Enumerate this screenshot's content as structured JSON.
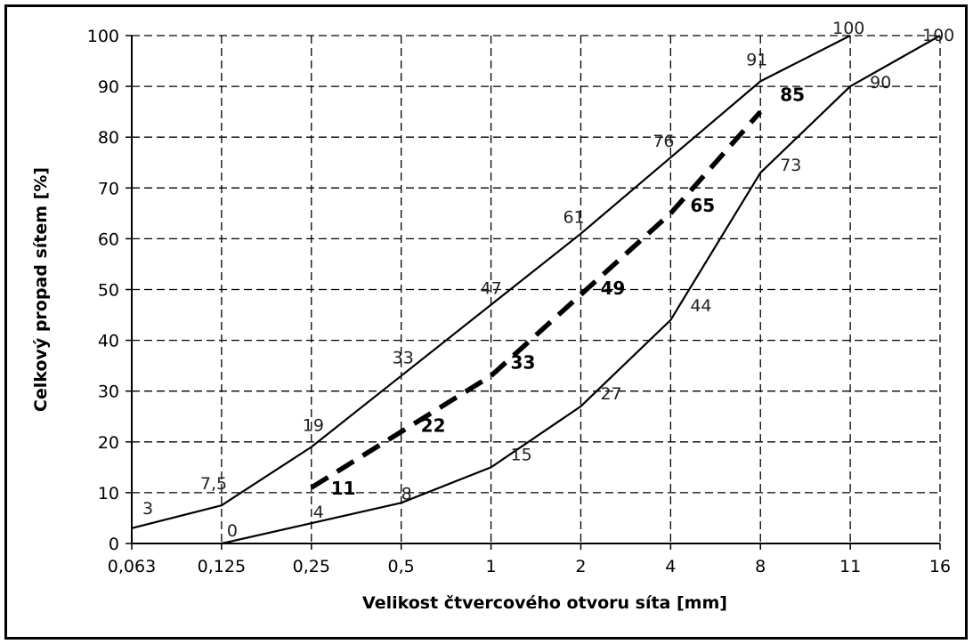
{
  "chart_data": {
    "type": "line",
    "title": "",
    "xlabel": "Velikost čtvercového otvoru síta [mm]",
    "ylabel": "Celkový propad sítem [%]",
    "ylim": [
      0,
      100
    ],
    "y_ticks": [
      "0",
      "10",
      "20",
      "30",
      "40",
      "50",
      "60",
      "70",
      "80",
      "90",
      "100"
    ],
    "categories": [
      "0,063",
      "0,125",
      "0,25",
      "0,5",
      "1",
      "2",
      "4",
      "8",
      "11",
      "16"
    ],
    "grid": true,
    "series": [
      {
        "name": "",
        "style": "solid",
        "points": [
          [
            0,
            3
          ],
          [
            1,
            7.5
          ],
          [
            2,
            19
          ],
          [
            3,
            33
          ],
          [
            4,
            47
          ],
          [
            5,
            61
          ],
          [
            6,
            76
          ],
          [
            7,
            91
          ],
          [
            8,
            100
          ]
        ],
        "labels": [
          "3",
          "7,5",
          "19",
          "33",
          "47",
          "61",
          "76",
          "91",
          "100"
        ]
      },
      {
        "name": "",
        "style": "solid",
        "points": [
          [
            1,
            0
          ],
          [
            2,
            4
          ],
          [
            3,
            8
          ],
          [
            4,
            15
          ],
          [
            5,
            27
          ],
          [
            6,
            44
          ],
          [
            7,
            73
          ],
          [
            8,
            90
          ],
          [
            9,
            100
          ]
        ],
        "labels": [
          "0",
          "4",
          "8",
          "15",
          "27",
          "44",
          "73",
          "90",
          "100"
        ]
      },
      {
        "name": "",
        "style": "dashed",
        "points": [
          [
            2,
            11
          ],
          [
            3,
            22
          ],
          [
            4,
            33
          ],
          [
            5,
            49
          ],
          [
            6,
            65
          ],
          [
            7,
            85
          ]
        ],
        "labels": [
          "11",
          "22",
          "33",
          "49",
          "65",
          "85"
        ]
      }
    ]
  }
}
